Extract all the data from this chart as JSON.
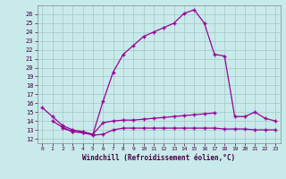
{
  "xlabel": "Windchill (Refroidissement éolien,°C)",
  "background_color": "#c8eaea",
  "grid_color": "#aacccc",
  "line_color": "#990099",
  "yticks": [
    12,
    13,
    14,
    15,
    16,
    17,
    18,
    19,
    20,
    21,
    22,
    23,
    24,
    25,
    26
  ],
  "xticks": [
    0,
    1,
    2,
    3,
    4,
    5,
    6,
    7,
    8,
    9,
    10,
    11,
    12,
    13,
    14,
    15,
    16,
    17,
    18,
    19,
    20,
    21,
    22,
    23
  ],
  "xlim": [
    -0.5,
    23.5
  ],
  "ylim": [
    11.5,
    27.0
  ],
  "line1_x": [
    0,
    1,
    2,
    3,
    4,
    5,
    6,
    7,
    8,
    9,
    10,
    11,
    12,
    13,
    14,
    15,
    16,
    17,
    18,
    19,
    20,
    21,
    22,
    23
  ],
  "line1_y": [
    15.5,
    14.5,
    13.5,
    13.0,
    12.8,
    12.5,
    16.2,
    19.5,
    21.5,
    22.5,
    23.5,
    24.0,
    24.5,
    25.0,
    26.1,
    26.5,
    25.0,
    21.5,
    21.3,
    14.5,
    14.5,
    15.0,
    14.3,
    14.0
  ],
  "line2_x": [
    1,
    2,
    3,
    4,
    5,
    6,
    7,
    8,
    9,
    10,
    11,
    12,
    13,
    14,
    15,
    16,
    17
  ],
  "line2_y": [
    14.0,
    13.3,
    12.8,
    12.7,
    12.5,
    13.8,
    14.0,
    14.1,
    14.1,
    14.2,
    14.3,
    14.4,
    14.5,
    14.6,
    14.7,
    14.8,
    14.9
  ],
  "line3_x": [
    2,
    3,
    4,
    5,
    6,
    7,
    8,
    9,
    10,
    11,
    12,
    13,
    14,
    15,
    16,
    17,
    18,
    19,
    20,
    21,
    22,
    23
  ],
  "line3_y": [
    13.2,
    12.8,
    12.7,
    12.4,
    12.5,
    13.0,
    13.2,
    13.2,
    13.2,
    13.2,
    13.2,
    13.2,
    13.2,
    13.2,
    13.2,
    13.2,
    13.1,
    13.1,
    13.1,
    13.0,
    13.0,
    13.0
  ]
}
